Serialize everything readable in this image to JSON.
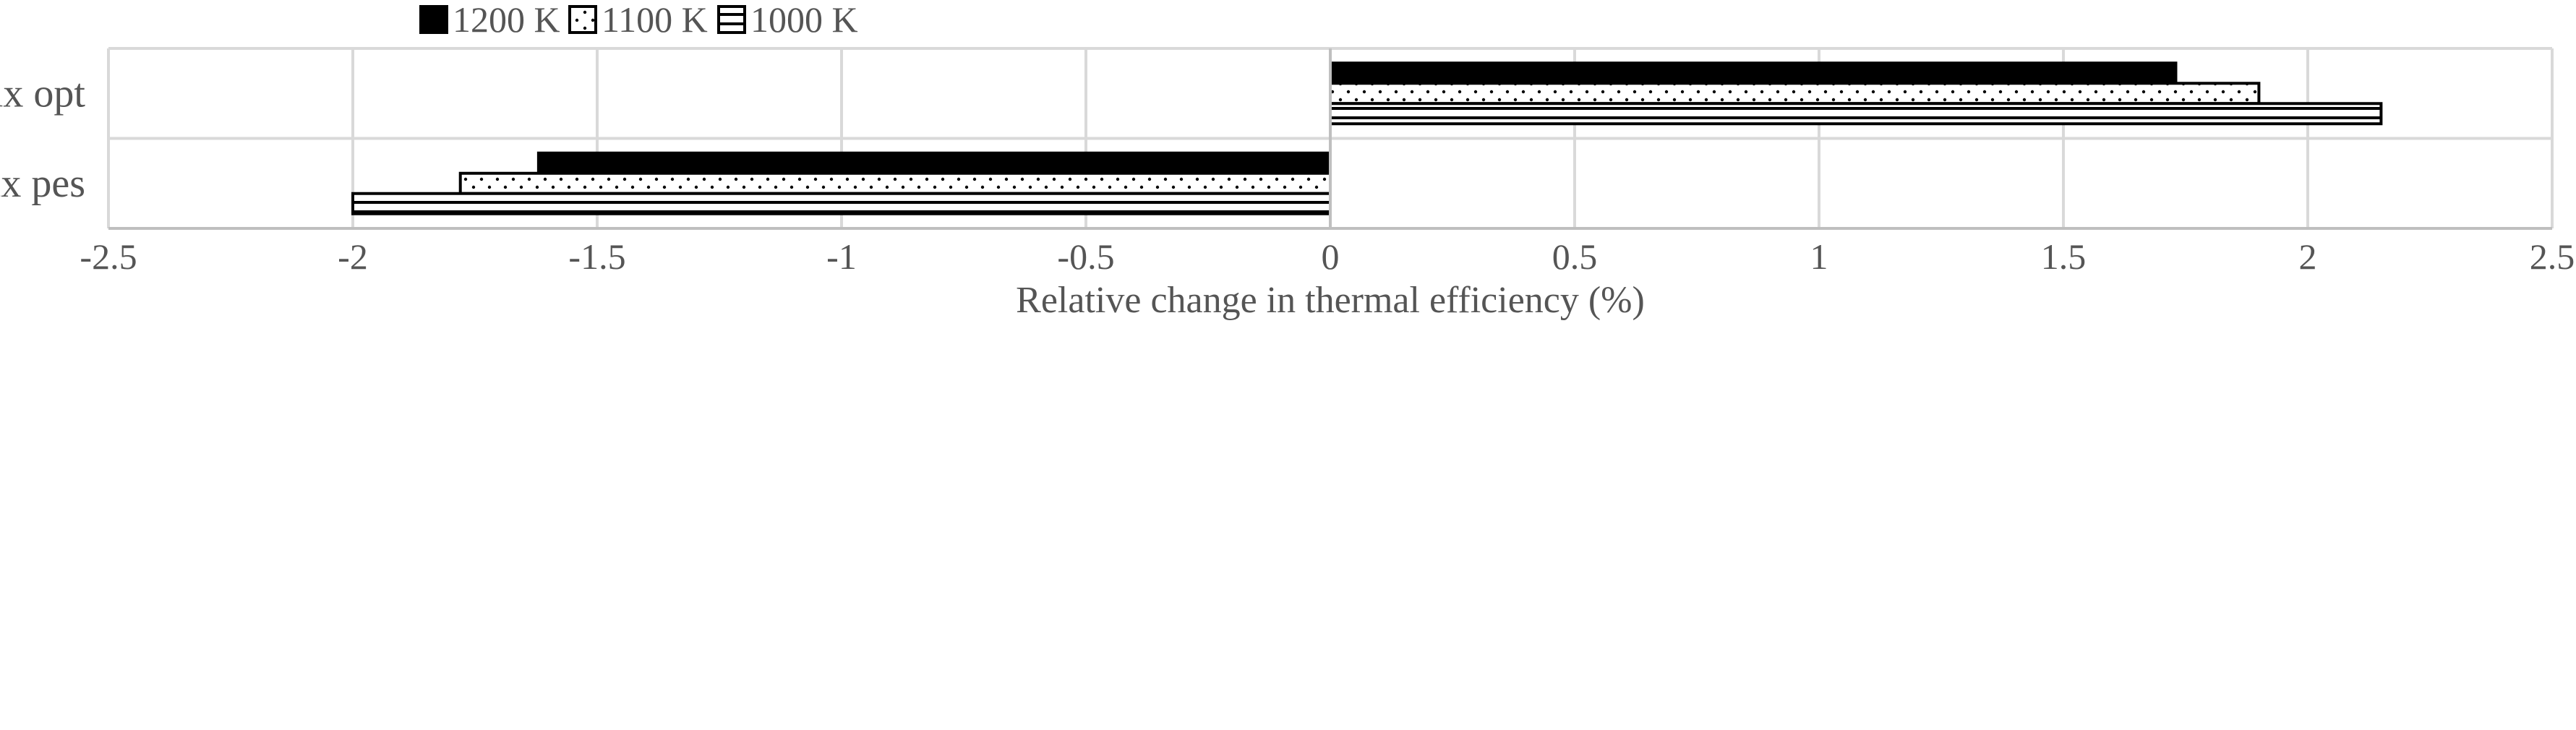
{
  "chart_data": {
    "type": "bar",
    "orientation": "horizontal",
    "title": "",
    "xlabel": "Relative change in thermal efficiency (%)",
    "ylabel": "",
    "xlim": [
      -2.5,
      2.5
    ],
    "x_ticks": [
      "-2.5",
      "-2",
      "-1.5",
      "-1",
      "-0.5",
      "0",
      "0.5",
      "1",
      "1.5",
      "2",
      "2.5"
    ],
    "categories": [
      "Mix opt",
      "Mix pes"
    ],
    "series": [
      {
        "name": "1200 K",
        "values": [
          1.73,
          -1.62
        ],
        "fill": "solid",
        "color": "#000000"
      },
      {
        "name": "1100 K",
        "values": [
          1.9,
          -1.78
        ],
        "fill": "dots",
        "color": "#000000"
      },
      {
        "name": "1000 K",
        "values": [
          2.15,
          -2.0
        ],
        "fill": "hlines",
        "color": "#000000"
      }
    ],
    "grid": true,
    "legend_position": "top-center"
  }
}
